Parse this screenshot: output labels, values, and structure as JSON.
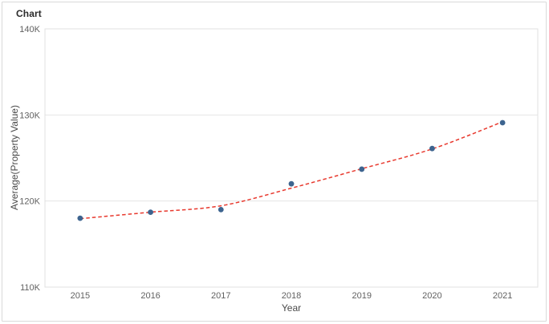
{
  "header": {
    "title": "Chart"
  },
  "chart_data": {
    "type": "scatter",
    "title": "Chart",
    "xlabel": "Year",
    "ylabel": "Average(Property Value)",
    "x": [
      2015,
      2016,
      2017,
      2018,
      2019,
      2020,
      2021
    ],
    "series": [
      {
        "name": "Average(Property Value)",
        "values": [
          118000,
          118700,
          119000,
          122000,
          123700,
          126100,
          129100
        ]
      }
    ],
    "trend": {
      "type": "polynomial-fit",
      "style": "dashed",
      "color": "#e8392e",
      "values": [
        117950,
        118700,
        119450,
        121500,
        123750,
        126050,
        129200
      ]
    },
    "ylim": [
      110000,
      140000
    ],
    "yticks": [
      {
        "value": 110000,
        "label": "110K"
      },
      {
        "value": 120000,
        "label": "120K"
      },
      {
        "value": 130000,
        "label": "130K"
      },
      {
        "value": 140000,
        "label": "140K"
      }
    ],
    "xticks": [
      "2015",
      "2016",
      "2017",
      "2018",
      "2019",
      "2020",
      "2021"
    ],
    "grid": "horizontal",
    "legend": "none",
    "marker_color": "#3d648f",
    "marker_radius": 3.4,
    "gridline_color": "#e5e5e5",
    "plot_border_color": "#e0e0e0",
    "tick_color": "#616161"
  }
}
